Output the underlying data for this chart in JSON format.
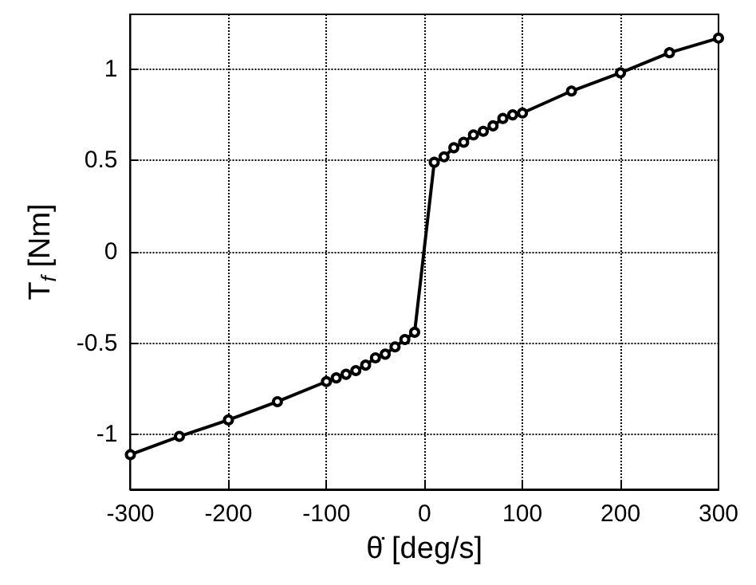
{
  "chart_data": {
    "type": "line",
    "xlabel": "θ̇ [deg/s]",
    "ylabel": "T$_{f}$ [Nm]",
    "x": [
      -300,
      -250,
      -200,
      -150,
      -100,
      -90,
      -80,
      -70,
      -60,
      -50,
      -40,
      -30,
      -20,
      -10,
      10,
      20,
      30,
      40,
      50,
      60,
      70,
      80,
      90,
      100,
      150,
      200,
      250,
      300
    ],
    "series": [
      {
        "color": "#000000",
        "values": [
          -1.11,
          -1.01,
          -0.92,
          -0.82,
          -0.71,
          -0.69,
          -0.67,
          -0.65,
          -0.62,
          -0.58,
          -0.56,
          -0.52,
          -0.48,
          -0.44,
          0.49,
          0.52,
          0.57,
          0.6,
          0.64,
          0.66,
          0.69,
          0.73,
          0.75,
          0.76,
          0.88,
          0.98,
          1.09,
          1.17
        ]
      }
    ],
    "xlim": [
      -300,
      300
    ],
    "xticks": [
      -300,
      -200,
      -100,
      0,
      100,
      200,
      300
    ],
    "ylim": [
      -1.3,
      1.3
    ],
    "yticks": [
      -1,
      -0.5,
      0,
      0.5,
      1
    ],
    "grid": true,
    "marker": "circle",
    "line_style": "solid"
  }
}
